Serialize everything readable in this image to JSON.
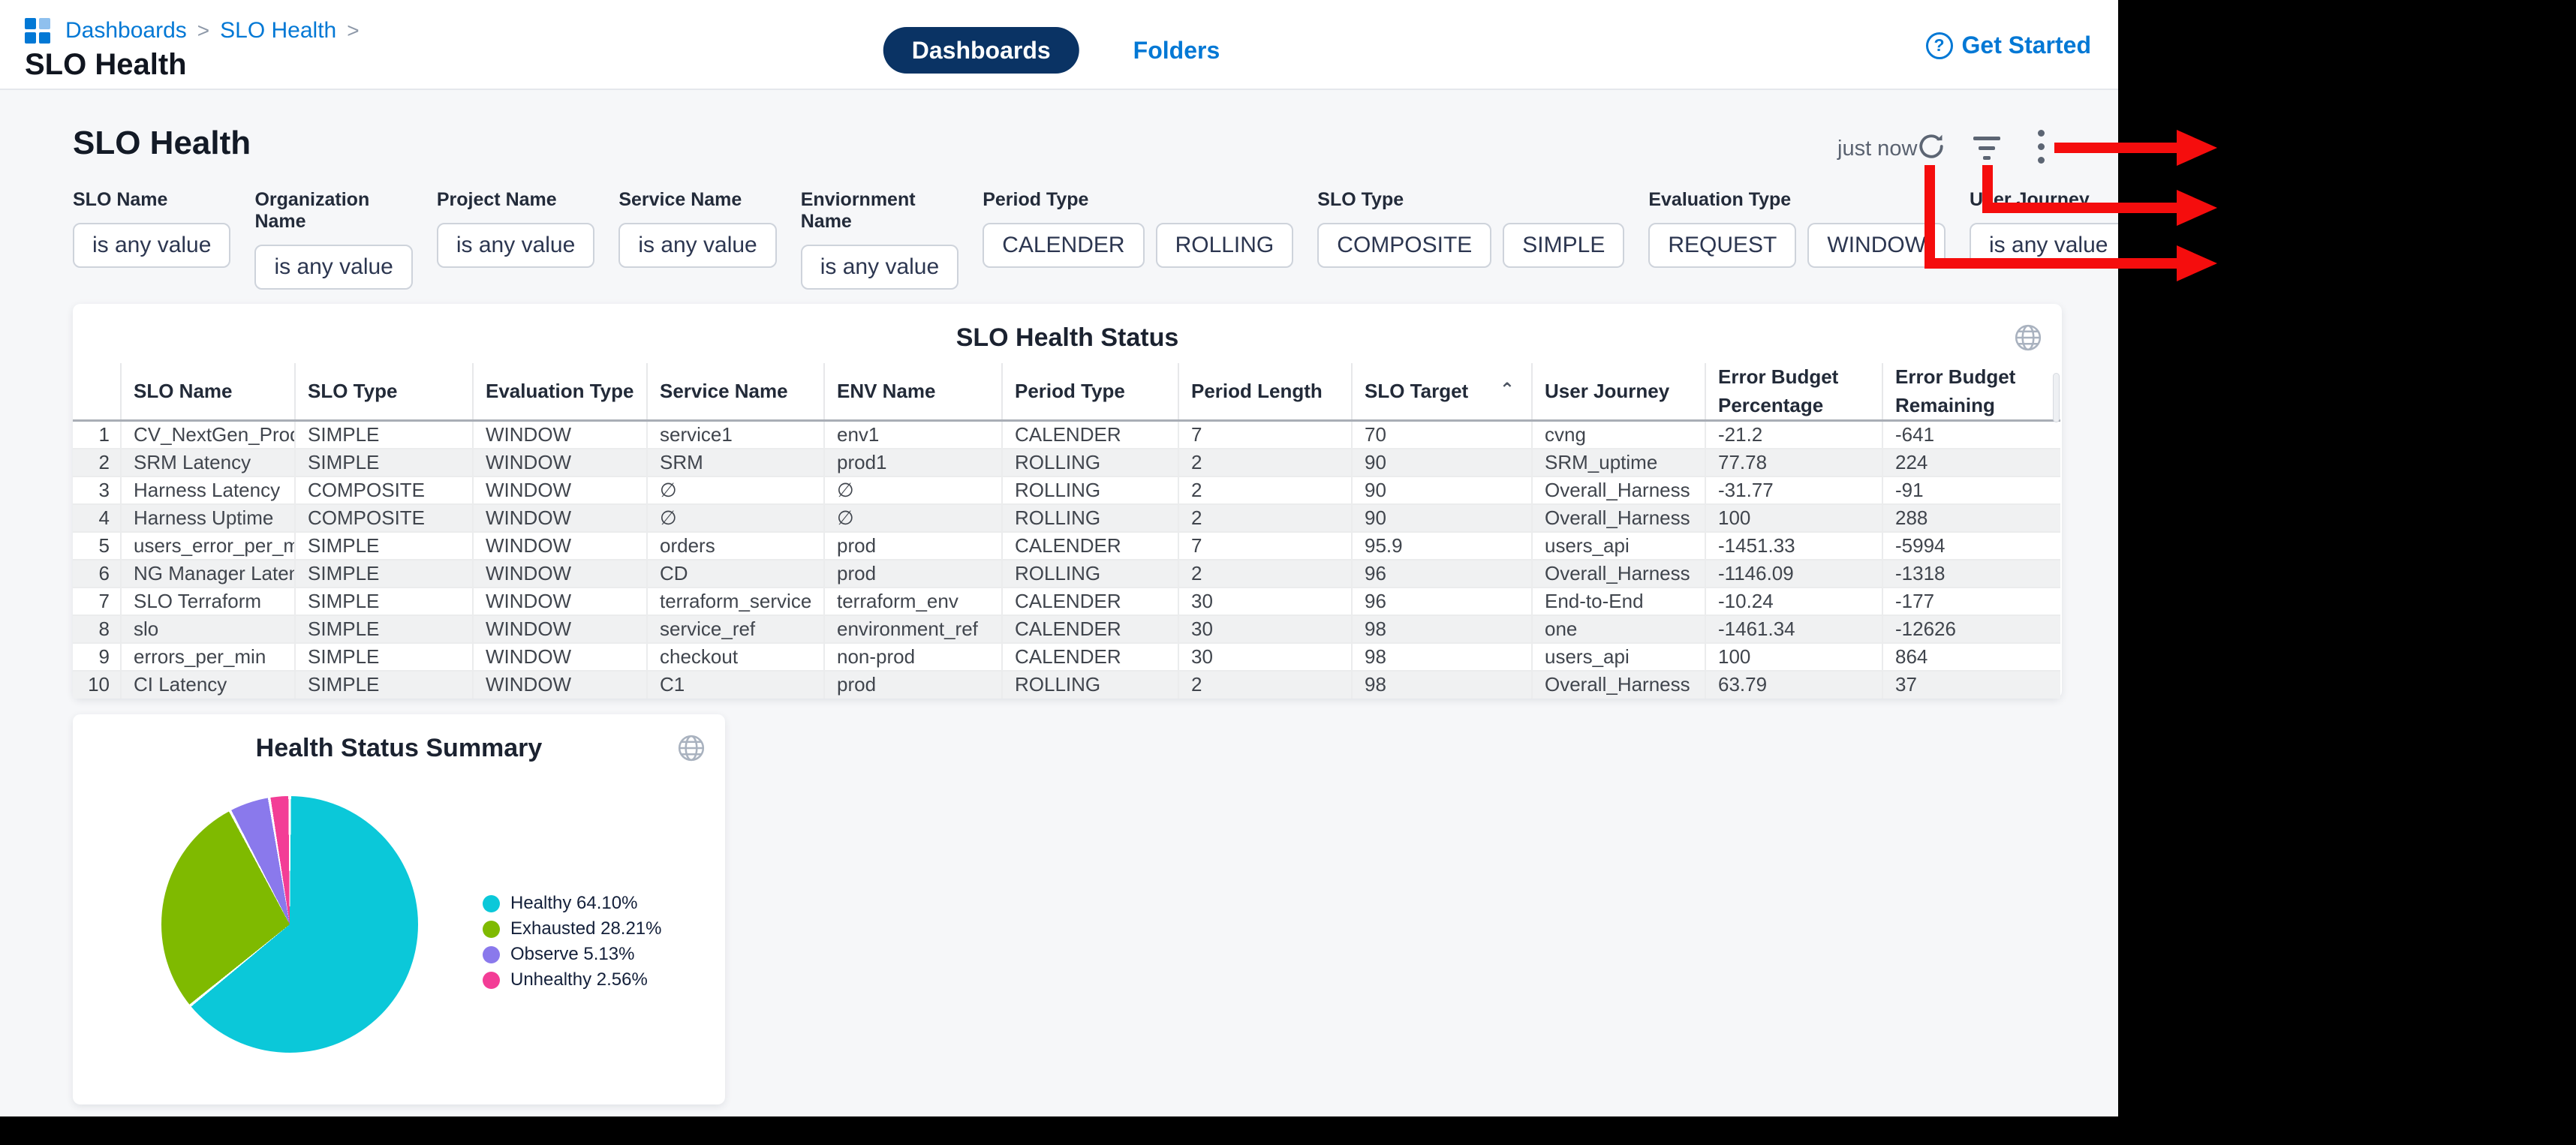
{
  "colors": {
    "link": "#0278d5",
    "pill": "#0a3364",
    "annotation": "#f50d0d"
  },
  "topbar": {
    "breadcrumb": {
      "items": [
        "Dashboards",
        "SLO Health"
      ],
      "separator": ">"
    },
    "title": "SLO Health",
    "tabs": [
      {
        "label": "Dashboards",
        "active": true
      },
      {
        "label": "Folders",
        "active": false
      }
    ],
    "get_started": "Get Started",
    "question_mark": "?"
  },
  "header": {
    "heading": "SLO Health",
    "last_refresh": "just now"
  },
  "filters": [
    {
      "label": "SLO Name",
      "buttons": [
        "is any value"
      ]
    },
    {
      "label": "Organization Name",
      "buttons": [
        "is any value"
      ]
    },
    {
      "label": "Project Name",
      "buttons": [
        "is any value"
      ]
    },
    {
      "label": "Service Name",
      "buttons": [
        "is any value"
      ]
    },
    {
      "label": "Enviornment Name",
      "buttons": [
        "is any value"
      ]
    },
    {
      "label": "Period Type",
      "buttons": [
        "CALENDER",
        "ROLLING"
      ]
    },
    {
      "label": "SLO Type",
      "buttons": [
        "COMPOSITE",
        "SIMPLE"
      ]
    },
    {
      "label": "Evaluation Type",
      "buttons": [
        "REQUEST",
        "WINDOW"
      ]
    },
    {
      "label": "User Journey",
      "buttons": [
        "is any value"
      ]
    }
  ],
  "table": {
    "title": "SLO Health Status",
    "columns": [
      {
        "label": ""
      },
      {
        "label": "SLO Name"
      },
      {
        "label": "SLO Type"
      },
      {
        "label": "Evaluation Type"
      },
      {
        "label": "Service Name"
      },
      {
        "label": "ENV Name"
      },
      {
        "label": "Period Type"
      },
      {
        "label": "Period Length"
      },
      {
        "label": "SLO Target",
        "sort": "⌃"
      },
      {
        "label": "User Journey"
      },
      {
        "label": "Error Budget\nPercentage"
      },
      {
        "label": "Error Budget\nRemaining"
      }
    ],
    "rows": [
      [
        "1",
        "CV_NextGen_Prod",
        "SIMPLE",
        "WINDOW",
        "service1",
        "env1",
        "CALENDER",
        "7",
        "70",
        "cvng",
        "-21.2",
        "-641"
      ],
      [
        "2",
        "SRM Latency",
        "SIMPLE",
        "WINDOW",
        "SRM",
        "prod1",
        "ROLLING",
        "2",
        "90",
        "SRM_uptime",
        "77.78",
        "224"
      ],
      [
        "3",
        "Harness Latency",
        "COMPOSITE",
        "WINDOW",
        "∅",
        "∅",
        "ROLLING",
        "2",
        "90",
        "Overall_Harness",
        "-31.77",
        "-91"
      ],
      [
        "4",
        "Harness Uptime",
        "COMPOSITE",
        "WINDOW",
        "∅",
        "∅",
        "ROLLING",
        "2",
        "90",
        "Overall_Harness",
        "100",
        "288"
      ],
      [
        "5",
        "users_error_per_min",
        "SIMPLE",
        "WINDOW",
        "orders",
        "prod",
        "CALENDER",
        "7",
        "95.9",
        "users_api",
        "-1451.33",
        "-5994"
      ],
      [
        "6",
        "NG Manager Latency",
        "SIMPLE",
        "WINDOW",
        "CD",
        "prod",
        "ROLLING",
        "2",
        "96",
        "Overall_Harness",
        "-1146.09",
        "-1318"
      ],
      [
        "7",
        "SLO Terraform",
        "SIMPLE",
        "WINDOW",
        "terraform_service",
        "terraform_env",
        "CALENDER",
        "30",
        "96",
        "End-to-End",
        "-10.24",
        "-177"
      ],
      [
        "8",
        "slo",
        "SIMPLE",
        "WINDOW",
        "service_ref",
        "environment_ref",
        "CALENDER",
        "30",
        "98",
        "one",
        "-1461.34",
        "-12626"
      ],
      [
        "9",
        "errors_per_min",
        "SIMPLE",
        "WINDOW",
        "checkout",
        "non-prod",
        "CALENDER",
        "30",
        "98",
        "users_api",
        "100",
        "864"
      ],
      [
        "10",
        "CI Latency",
        "SIMPLE",
        "WINDOW",
        "C1",
        "prod",
        "ROLLING",
        "2",
        "98",
        "Overall_Harness",
        "63.79",
        "37"
      ]
    ]
  },
  "chart_data": {
    "type": "pie",
    "title": "Health Status Summary",
    "legend_position": "right",
    "start_angle_deg": 0,
    "direction": "clockwise",
    "slices": [
      {
        "label": "Healthy",
        "value": 64.1,
        "pct_label": "64.10%",
        "color": "#0bc8d9"
      },
      {
        "label": "Exhausted",
        "value": 28.21,
        "pct_label": "28.21%",
        "color": "#7fba00"
      },
      {
        "label": "Observe",
        "value": 5.13,
        "pct_label": "5.13%",
        "color": "#8a79ec"
      },
      {
        "label": "Unhealthy",
        "value": 2.56,
        "pct_label": "2.56%",
        "color": "#f33d96"
      }
    ]
  }
}
